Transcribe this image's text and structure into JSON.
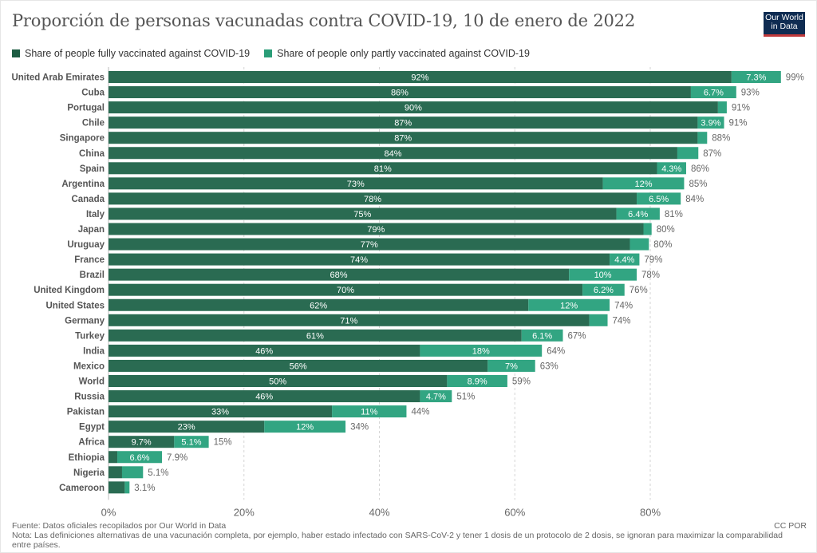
{
  "header": {
    "title": "Proporción de personas vacunadas contra COVID-19, 10 de enero de 2022",
    "logo_line1": "Our World",
    "logo_line2": "in Data"
  },
  "colors": {
    "full": "#2a6b52",
    "partial": "#32a582",
    "logo_bg": "#0f2c52",
    "logo_accent": "#c0393b"
  },
  "footer": {
    "source": "Fuente: Datos oficiales recopilados por Our World in Data",
    "note": "Nota: Las definiciones alternativas de una vacunación completa, por ejemplo, haber estado infectado con SARS-CoV-2 y tener 1 dosis de un protocolo de 2 dosis, se ignoran para maximizar la comparabilidad entre países.",
    "license": "CC POR"
  },
  "chart_data": {
    "type": "bar",
    "orientation": "horizontal",
    "stacked": true,
    "title": "Proporción de personas vacunadas contra COVID-19, 10 de enero de 2022",
    "xlabel": "",
    "ylabel": "",
    "xlim": [
      0,
      100
    ],
    "x_ticks": [
      "0%",
      "20%",
      "40%",
      "60%",
      "80%"
    ],
    "x_tick_values": [
      0,
      20,
      40,
      60,
      80
    ],
    "grid": "vertical dotted",
    "legend_position": "top-left",
    "categories": [
      "United Arab Emirates",
      "Cuba",
      "Portugal",
      "Chile",
      "Singapore",
      "China",
      "Spain",
      "Argentina",
      "Canada",
      "Italy",
      "Japan",
      "Uruguay",
      "France",
      "Brazil",
      "United Kingdom",
      "United States",
      "Germany",
      "Turkey",
      "India",
      "Mexico",
      "World",
      "Russia",
      "Pakistan",
      "Egypt",
      "Africa",
      "Ethiopia",
      "Nigeria",
      "Cameroon"
    ],
    "series": [
      {
        "name": "Share of people fully vaccinated against COVID-19",
        "values": [
          92,
          86,
          90,
          87,
          87,
          84,
          81,
          73,
          78,
          75,
          79,
          77,
          74,
          68,
          70,
          62,
          71,
          61,
          46,
          56,
          50,
          46,
          33,
          23,
          9.7,
          1.3,
          2.0,
          2.4
        ],
        "labels": [
          "92%",
          "86%",
          "90%",
          "87%",
          "87%",
          "84%",
          "81%",
          "73%",
          "78%",
          "75%",
          "79%",
          "77%",
          "74%",
          "68%",
          "70%",
          "62%",
          "71%",
          "61%",
          "46%",
          "56%",
          "50%",
          "46%",
          "33%",
          "23%",
          "9.7%",
          "",
          "",
          ""
        ]
      },
      {
        "name": "Share of people only partly vaccinated against COVID-19",
        "values": [
          7.3,
          6.7,
          1.3,
          3.9,
          1.4,
          3.1,
          4.3,
          12,
          6.5,
          6.4,
          1.2,
          2.8,
          4.4,
          10,
          6.2,
          12,
          2.7,
          6.1,
          18,
          7,
          8.9,
          4.7,
          11,
          12,
          5.1,
          6.6,
          3.1,
          0.7
        ],
        "labels": [
          "7.3%",
          "6.7%",
          "",
          "3.9%",
          "",
          "",
          "4.3%",
          "12%",
          "6.5%",
          "6.4%",
          "",
          "",
          "4.4%",
          "10%",
          "6.2%",
          "12%",
          "",
          "6.1%",
          "18%",
          "7%",
          "8.9%",
          "4.7%",
          "11%",
          "12%",
          "5.1%",
          "6.6%",
          "",
          ""
        ]
      }
    ],
    "totals": [
      "99%",
      "93%",
      "91%",
      "91%",
      "88%",
      "87%",
      "86%",
      "85%",
      "84%",
      "81%",
      "80%",
      "80%",
      "79%",
      "78%",
      "76%",
      "74%",
      "74%",
      "67%",
      "64%",
      "63%",
      "59%",
      "51%",
      "44%",
      "34%",
      "15%",
      "7.9%",
      "5.1%",
      "3.1%"
    ]
  }
}
